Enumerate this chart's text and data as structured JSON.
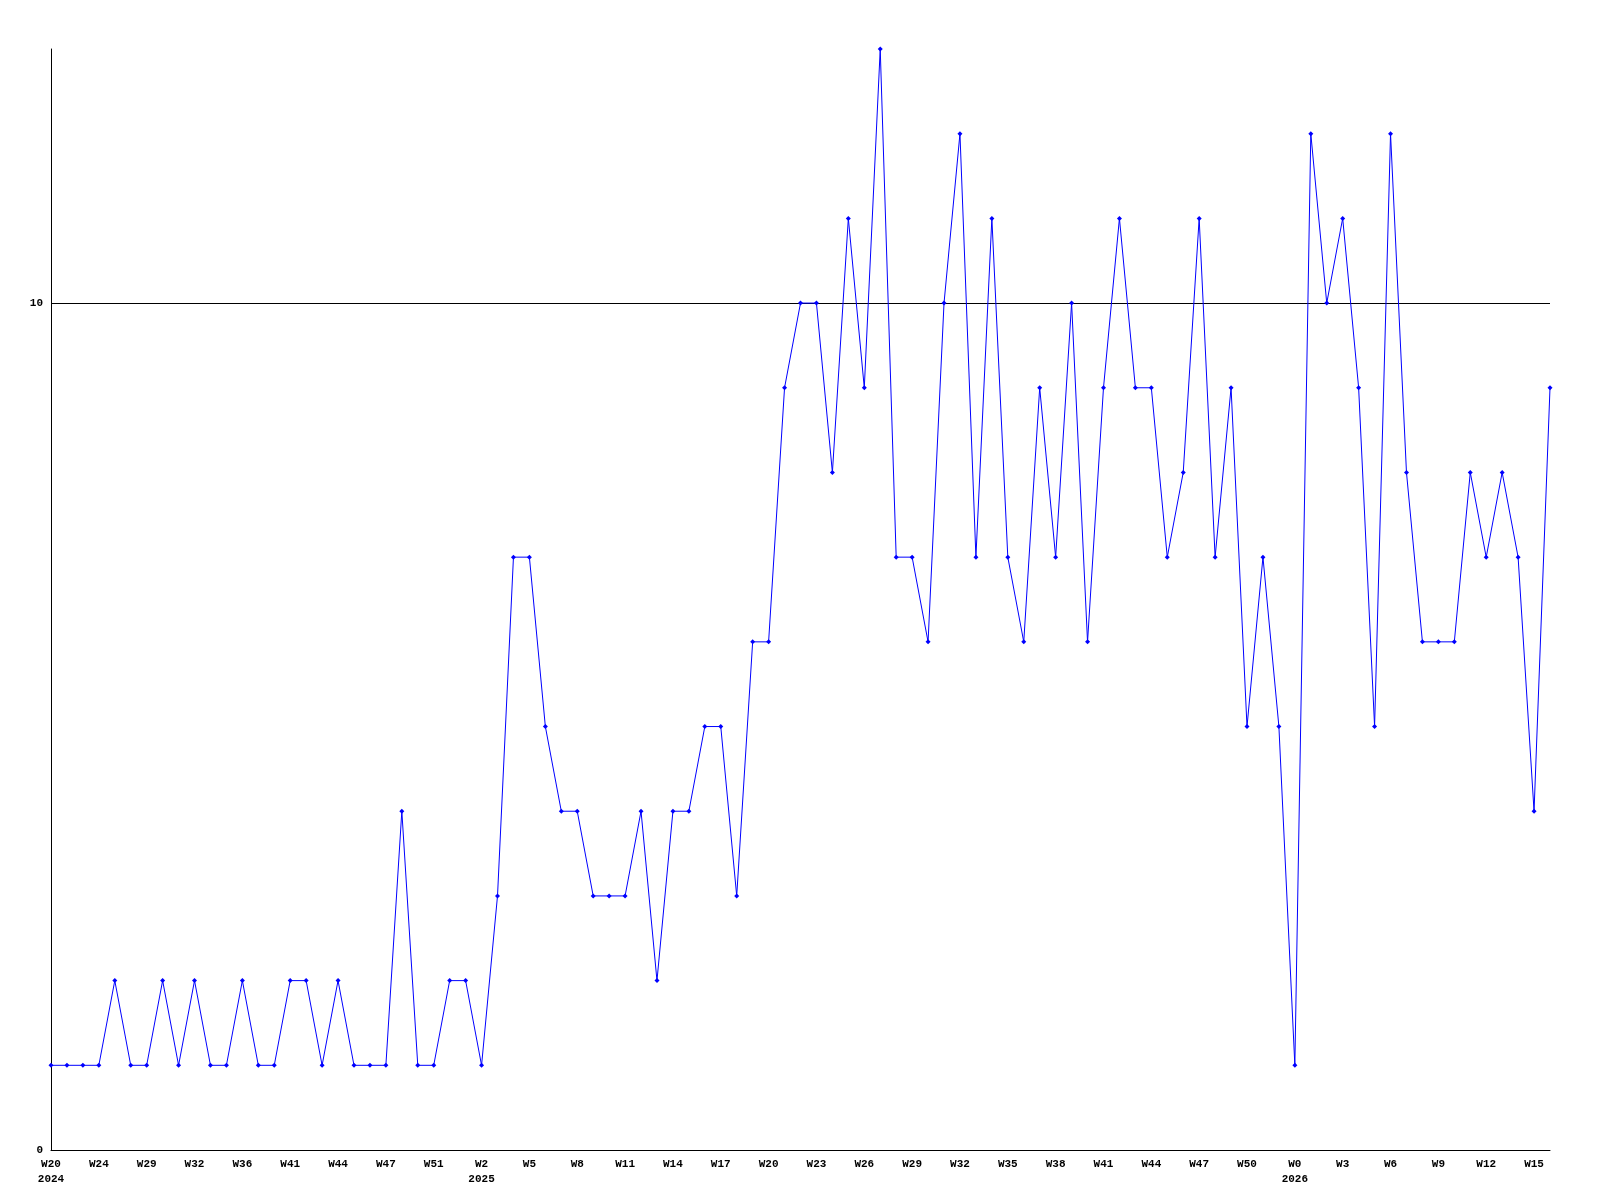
{
  "chart_data": {
    "type": "line",
    "categories": [
      "W20\n2024",
      null,
      null,
      "W24",
      null,
      null,
      "W29",
      null,
      null,
      "W32",
      null,
      null,
      "W36",
      null,
      null,
      "W41",
      null,
      null,
      "W44",
      null,
      null,
      "W47",
      null,
      null,
      "W51",
      null,
      null,
      "W2\n2025",
      null,
      null,
      "W5",
      null,
      null,
      "W8",
      null,
      null,
      "W11",
      null,
      null,
      "W14",
      null,
      null,
      "W17",
      null,
      null,
      "W20",
      null,
      null,
      "W23",
      null,
      null,
      "W26",
      null,
      null,
      "W29",
      null,
      null,
      "W32",
      null,
      null,
      "W35",
      null,
      null,
      "W38",
      null,
      null,
      "W41",
      null,
      null,
      "W44",
      null,
      null,
      "W47",
      null,
      null,
      "W50",
      null,
      null,
      "W0\n2026",
      null,
      null,
      "W3",
      null,
      null,
      "W6",
      null,
      null,
      "W9",
      null,
      null,
      "W12",
      null,
      null,
      "W15",
      null
    ],
    "series": [
      {
        "color": "#0000ff",
        "values": [
          1,
          1,
          1,
          1,
          2,
          1,
          1,
          2,
          1,
          2,
          1,
          1,
          2,
          1,
          1,
          2,
          2,
          1,
          2,
          1,
          1,
          1,
          4,
          1,
          1,
          2,
          2,
          1,
          3,
          7,
          7,
          5,
          4,
          4,
          3,
          3,
          3,
          4,
          2,
          4,
          4,
          5,
          5,
          3,
          6,
          6,
          9,
          10,
          10,
          8,
          11,
          9,
          13,
          7,
          7,
          6,
          10,
          12,
          7,
          11,
          7,
          6,
          9,
          7,
          10,
          6,
          9,
          11,
          9,
          9,
          7,
          8,
          11,
          7,
          9,
          5,
          7,
          5,
          1,
          12,
          10,
          11,
          9,
          5,
          12,
          8,
          6,
          6,
          6,
          8,
          7,
          8,
          7,
          4,
          9
        ]
      }
    ],
    "ylim": [
      0,
      13
    ],
    "yticks": [
      0,
      10
    ],
    "grid": "y",
    "marker": "diamond",
    "line_style": "solid"
  }
}
